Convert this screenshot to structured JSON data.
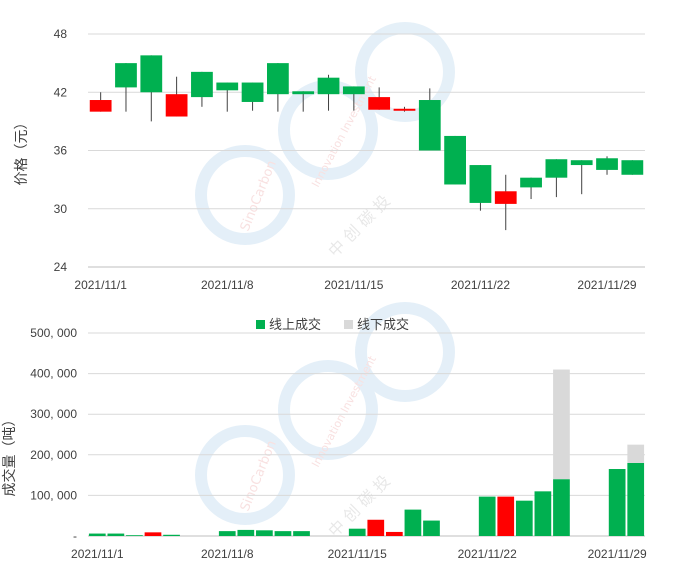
{
  "colors": {
    "up": "#00b050",
    "down": "#ff0000",
    "offline": "#d9d9d9",
    "grid": "#d9d9d9",
    "axis": "#bfbfbf",
    "text": "#404040",
    "watermark": "#5ba7dc"
  },
  "watermark": {
    "brand": "SinoCarbon",
    "sub": "Innovation Investment",
    "cn": "中 创 碳 投"
  },
  "chart_data": [
    {
      "type": "candlestick",
      "ylabel": "价格（元）",
      "ylim": [
        24,
        48
      ],
      "yticks": [
        "24",
        "30",
        "36",
        "42",
        "48"
      ],
      "xtick_labels": [
        "2021/11/1",
        "2021/11/8",
        "2021/11/15",
        "2021/11/22",
        "2021/11/29"
      ],
      "xtick_index": [
        0,
        5,
        10,
        15,
        20
      ],
      "grid": true,
      "candles": [
        {
          "date": "2021/11/1",
          "open": 41.2,
          "close": 40.0,
          "high": 42.0,
          "low": 40.0
        },
        {
          "date": "2021/11/2",
          "open": 42.5,
          "close": 45.0,
          "high": 45.0,
          "low": 40.0
        },
        {
          "date": "2021/11/3",
          "open": 42.0,
          "close": 45.8,
          "high": 45.8,
          "low": 39.0
        },
        {
          "date": "2021/11/4",
          "open": 41.8,
          "close": 39.5,
          "high": 43.6,
          "low": 39.5
        },
        {
          "date": "2021/11/5",
          "open": 41.5,
          "close": 44.1,
          "high": 44.1,
          "low": 40.5
        },
        {
          "date": "2021/11/8",
          "open": 42.2,
          "close": 43.0,
          "high": 43.0,
          "low": 40.0
        },
        {
          "date": "2021/11/9",
          "open": 41.0,
          "close": 43.0,
          "high": 43.0,
          "low": 40.1
        },
        {
          "date": "2021/11/10",
          "open": 41.8,
          "close": 45.0,
          "high": 45.0,
          "low": 40.0
        },
        {
          "date": "2021/11/11",
          "open": 41.8,
          "close": 42.1,
          "high": 42.1,
          "low": 40.0
        },
        {
          "date": "2021/11/12",
          "open": 41.8,
          "close": 43.5,
          "high": 43.8,
          "low": 40.1
        },
        {
          "date": "2021/11/15",
          "open": 41.8,
          "close": 42.6,
          "high": 42.6,
          "low": 40.1
        },
        {
          "date": "2021/11/16",
          "open": 41.5,
          "close": 40.2,
          "high": 42.5,
          "low": 40.2
        },
        {
          "date": "2021/11/17",
          "open": 40.3,
          "close": 40.1,
          "high": 40.5,
          "low": 40.0
        },
        {
          "date": "2021/11/18",
          "open": 36.0,
          "close": 41.2,
          "high": 42.4,
          "low": 36.0
        },
        {
          "date": "2021/11/19",
          "open": 32.5,
          "close": 37.5,
          "high": 37.5,
          "low": 32.5
        },
        {
          "date": "2021/11/22",
          "open": 30.6,
          "close": 34.5,
          "high": 34.5,
          "low": 29.8
        },
        {
          "date": "2021/11/23",
          "open": 31.8,
          "close": 30.5,
          "high": 33.5,
          "low": 27.8
        },
        {
          "date": "2021/11/24",
          "open": 32.2,
          "close": 33.2,
          "high": 33.2,
          "low": 31.0
        },
        {
          "date": "2021/11/25",
          "open": 33.2,
          "close": 35.1,
          "high": 35.1,
          "low": 31.2
        },
        {
          "date": "2021/11/26",
          "open": 34.5,
          "close": 35.0,
          "high": 35.0,
          "low": 31.5
        },
        {
          "date": "2021/11/29",
          "open": 34.0,
          "close": 35.2,
          "high": 35.4,
          "low": 33.5
        },
        {
          "date": "2021/11/30",
          "open": 33.5,
          "close": 35.0,
          "high": 35.0,
          "low": 33.5
        }
      ]
    },
    {
      "type": "bar",
      "stacked": true,
      "ylabel": "成交量（吨）",
      "ylim": [
        0,
        500000
      ],
      "yticks": [
        "-",
        "100, 000",
        "200, 000",
        "300, 000",
        "400, 000",
        "500, 000"
      ],
      "xtick_labels": [
        "2021/11/1",
        "2021/11/8",
        "2021/11/15",
        "2021/11/22",
        "2021/11/29"
      ],
      "xtick_index": [
        0,
        7,
        14,
        21,
        28
      ],
      "legend": {
        "position": "top",
        "entries": [
          "线上成交",
          "线下成交"
        ]
      },
      "grid": true,
      "series": [
        {
          "name": "线上成交",
          "values": [
            6000,
            6000,
            2000,
            9000,
            3000,
            0,
            0,
            12000,
            15000,
            14000,
            12000,
            12000,
            0,
            0,
            18000,
            40000,
            10000,
            65000,
            38000,
            0,
            0,
            97000,
            97000,
            87000,
            110000,
            140000,
            0,
            0,
            165000,
            180000
          ]
        },
        {
          "name": "线下成交",
          "values": [
            0,
            0,
            0,
            0,
            0,
            0,
            0,
            0,
            0,
            0,
            0,
            0,
            0,
            0,
            0,
            0,
            0,
            0,
            0,
            0,
            0,
            0,
            0,
            0,
            0,
            270000,
            0,
            0,
            0,
            45000
          ]
        }
      ],
      "bar_colors": [
        "up",
        "up",
        "up",
        "down",
        "up",
        "up",
        "up",
        "up",
        "up",
        "up",
        "up",
        "up",
        "up",
        "up",
        "up",
        "down",
        "down",
        "up",
        "up",
        "up",
        "up",
        "up",
        "down",
        "up",
        "up",
        "up",
        "up",
        "up",
        "up",
        "up"
      ]
    }
  ]
}
